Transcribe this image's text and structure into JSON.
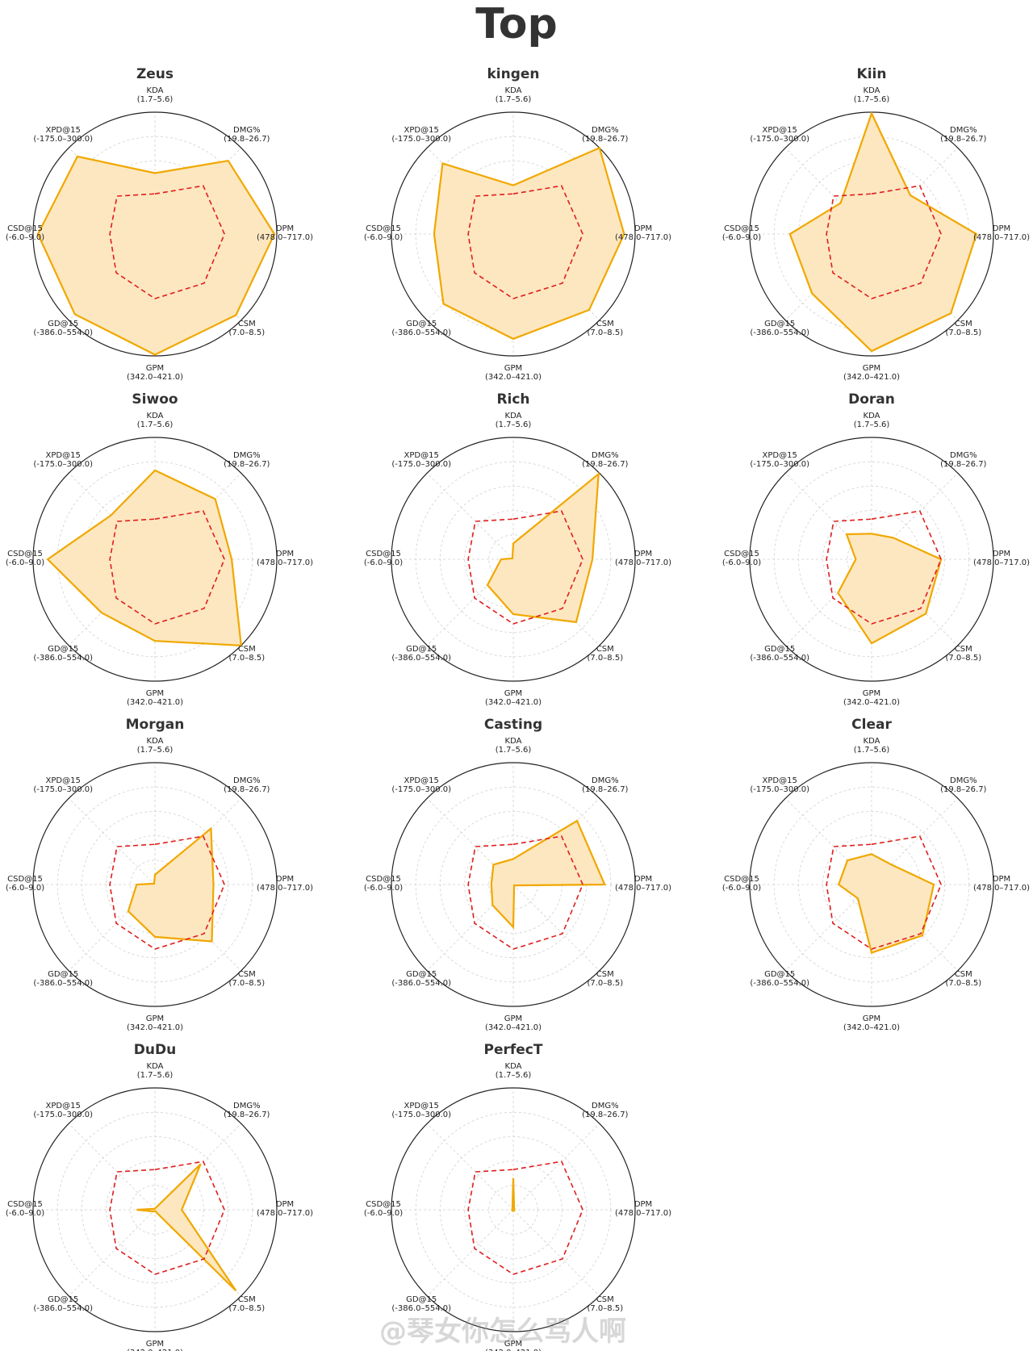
{
  "title": "Top",
  "watermark": "@琴女你怎么骂人啊",
  "colors": {
    "fill": "#fde6bd",
    "line": "#f0a800",
    "average": "#e01e1e",
    "grid": "#d0d0d0",
    "outer": "#222222"
  },
  "chart_data": {
    "type": "radar",
    "axes": [
      {
        "name": "KDA",
        "range": "(1.7–5.6)"
      },
      {
        "name": "DMG%",
        "range": "(19.8–26.7)"
      },
      {
        "name": "DPM",
        "range": "(478.0–717.0)"
      },
      {
        "name": "CSM",
        "range": "(7.0–8.5)"
      },
      {
        "name": "GPM",
        "range": "(342.0–421.0)"
      },
      {
        "name": "GD@15",
        "range": "(-386.0–554.0)"
      },
      {
        "name": "CSD@15",
        "range": "(-6.0–9.0)"
      },
      {
        "name": "XPD@15",
        "range": "(-175.0–300.0)"
      }
    ],
    "average": [
      0.33,
      0.56,
      0.57,
      0.57,
      0.53,
      0.45,
      0.37,
      0.44
    ],
    "players": [
      {
        "name": "Zeus",
        "values": [
          0.5,
          0.85,
          0.98,
          0.94,
          0.99,
          0.93,
          0.96,
          0.9
        ]
      },
      {
        "name": "kingen",
        "values": [
          0.4,
          1.0,
          0.91,
          0.88,
          0.86,
          0.81,
          0.65,
          0.82
        ]
      },
      {
        "name": "Kiin",
        "values": [
          0.99,
          0.45,
          0.86,
          0.92,
          0.96,
          0.69,
          0.67,
          0.36
        ]
      },
      {
        "name": "Siwoo",
        "values": [
          0.73,
          0.7,
          0.63,
          1.0,
          0.67,
          0.62,
          0.88,
          0.51
        ]
      },
      {
        "name": "Rich",
        "values": [
          0.13,
          0.99,
          0.65,
          0.73,
          0.45,
          0.3,
          0.1,
          0.01
        ]
      },
      {
        "name": "Doran",
        "values": [
          0.21,
          0.25,
          0.57,
          0.63,
          0.69,
          0.39,
          0.13,
          0.29
        ]
      },
      {
        "name": "Morgan",
        "values": [
          0.08,
          0.65,
          0.48,
          0.66,
          0.43,
          0.31,
          0.15,
          0.01
        ]
      },
      {
        "name": "Casting",
        "values": [
          0.21,
          0.74,
          0.75,
          0.01,
          0.35,
          0.24,
          0.18,
          0.23
        ]
      },
      {
        "name": "Clear",
        "values": [
          0.25,
          0.23,
          0.51,
          0.59,
          0.56,
          0.16,
          0.27,
          0.28
        ]
      },
      {
        "name": "DuDu",
        "values": [
          0.01,
          0.53,
          0.22,
          0.94,
          0.01,
          0.02,
          0.15,
          0.01
        ]
      },
      {
        "name": "PerfecT",
        "values": [
          0.26,
          0.01,
          0.01,
          0.01,
          0.01,
          0.01,
          0.01,
          0.01
        ]
      }
    ]
  }
}
